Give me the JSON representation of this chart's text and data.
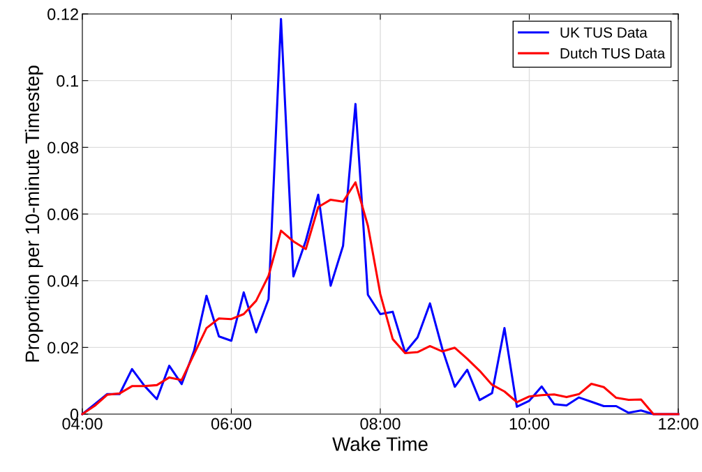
{
  "chart_data": {
    "type": "line",
    "xlabel": "Wake Time",
    "ylabel": "Proportion per 10-minute Timestep",
    "x": [
      4,
      4.1667,
      4.3333,
      4.5,
      4.6667,
      4.8333,
      5,
      5.1667,
      5.3333,
      5.5,
      5.6667,
      5.8333,
      6,
      6.1667,
      6.3333,
      6.5,
      6.6667,
      6.8333,
      7,
      7.1667,
      7.3333,
      7.5,
      7.6667,
      7.8333,
      8,
      8.1667,
      8.3333,
      8.5,
      8.6667,
      8.8333,
      9,
      9.1667,
      9.3333,
      9.5,
      9.6667,
      9.8333,
      10,
      10.1667,
      10.3333,
      10.5,
      10.6667,
      10.8333,
      11,
      11.1667,
      11.3333,
      11.5,
      11.6667,
      11.8333,
      12
    ],
    "series": [
      {
        "name": "UK TUS Data",
        "color": "#0000ff",
        "values": [
          0,
          0.003,
          0.006,
          0.006,
          0.0135,
          0.0085,
          0.0045,
          0.0145,
          0.009,
          0.019,
          0.0355,
          0.0233,
          0.022,
          0.0365,
          0.0245,
          0.0345,
          0.1185,
          0.0413,
          0.052,
          0.0658,
          0.0385,
          0.0505,
          0.093,
          0.0358,
          0.03,
          0.0307,
          0.0185,
          0.023,
          0.0332,
          0.0195,
          0.0082,
          0.0133,
          0.0042,
          0.0063,
          0.0258,
          0.0022,
          0.004,
          0.0083,
          0.003,
          0.0026,
          0.005,
          0.0037,
          0.0024,
          0.0024,
          0.0004,
          0.0011,
          0,
          0,
          0
        ]
      },
      {
        "name": "Dutch TUS Data",
        "color": "#ff0000",
        "values": [
          0,
          0.0025,
          0.0058,
          0.0062,
          0.0084,
          0.0084,
          0.0087,
          0.011,
          0.0102,
          0.018,
          0.0258,
          0.0287,
          0.0285,
          0.03,
          0.034,
          0.0415,
          0.055,
          0.0518,
          0.0495,
          0.0621,
          0.0643,
          0.0637,
          0.0695,
          0.0565,
          0.036,
          0.0225,
          0.0183,
          0.0186,
          0.0204,
          0.0188,
          0.0199,
          0.0166,
          0.013,
          0.0088,
          0.0068,
          0.0036,
          0.0053,
          0.0057,
          0.0059,
          0.0051,
          0.006,
          0.0091,
          0.0081,
          0.0049,
          0.0043,
          0.0044,
          0,
          0,
          0
        ]
      }
    ],
    "xlim": [
      4,
      12
    ],
    "xticks": [
      {
        "value": 4,
        "label": "04:00"
      },
      {
        "value": 6,
        "label": "06:00"
      },
      {
        "value": 8,
        "label": "08:00"
      },
      {
        "value": 10,
        "label": "10:00"
      },
      {
        "value": 12,
        "label": "12:00"
      }
    ],
    "ylim": [
      0,
      0.12
    ],
    "yticks": [
      0,
      0.02,
      0.04,
      0.06,
      0.08,
      0.1,
      0.12
    ],
    "grid": true,
    "legend": "top right",
    "marker": "none",
    "line_style": "solid"
  }
}
